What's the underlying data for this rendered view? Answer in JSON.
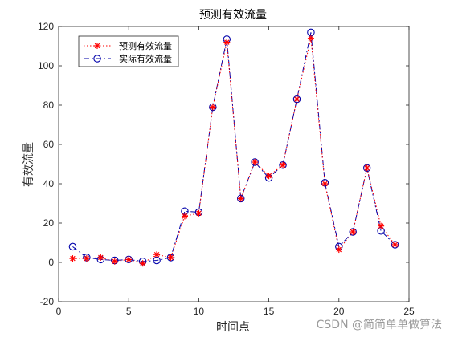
{
  "chart_data": {
    "type": "line",
    "title": "预测有效流量",
    "xlabel": "时间点",
    "ylabel": "有效流量",
    "xlim": [
      0,
      25
    ],
    "ylim": [
      -20,
      120
    ],
    "xticks": [
      0,
      5,
      10,
      15,
      20,
      25
    ],
    "yticks": [
      -20,
      0,
      20,
      40,
      60,
      80,
      100,
      120
    ],
    "grid": false,
    "legend_position": "top-left",
    "x": [
      1,
      2,
      3,
      4,
      5,
      6,
      7,
      8,
      9,
      10,
      11,
      12,
      13,
      14,
      15,
      16,
      17,
      18,
      19,
      20,
      21,
      22,
      23,
      24
    ],
    "series": [
      {
        "name": "预测有效流量",
        "color": "#ff0000",
        "line_color": "#ff0000",
        "line_style": "dotted",
        "marker": "star",
        "values": [
          2,
          2,
          2.5,
          0.5,
          1.5,
          -0.5,
          4,
          2.5,
          23.5,
          25,
          79,
          112,
          32.5,
          51,
          44,
          49.5,
          83,
          114,
          40,
          6.5,
          15.5,
          48,
          18.5,
          9
        ]
      },
      {
        "name": "实际有效流量",
        "color": "#0000aa",
        "line_color": "#0000aa",
        "line_style": "dashdot",
        "marker": "circle",
        "values": [
          8,
          2.5,
          1.5,
          1,
          1.5,
          0.5,
          1,
          2.5,
          26,
          25.5,
          79,
          113.5,
          32.5,
          51,
          43,
          49.5,
          83,
          117,
          40.5,
          8,
          15.5,
          48,
          16,
          9
        ]
      }
    ]
  },
  "watermark": "CSDN @简简单单做算法"
}
